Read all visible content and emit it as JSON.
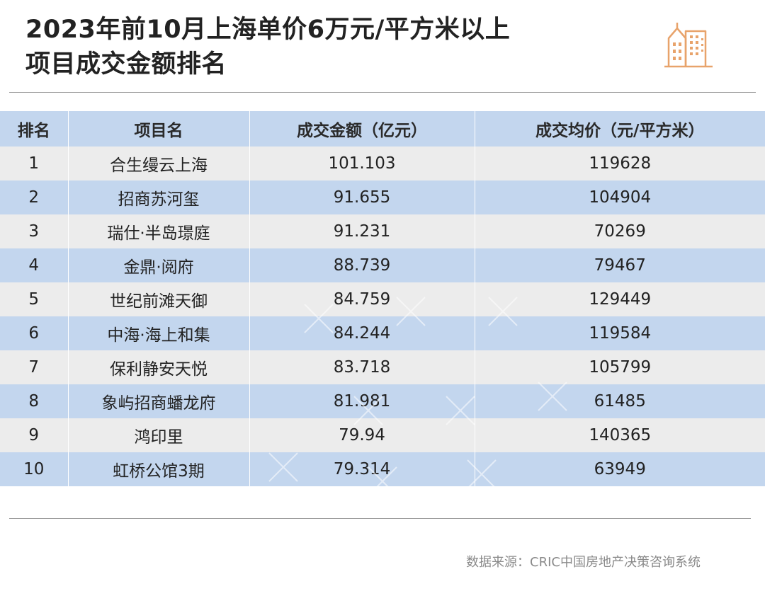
{
  "title": {
    "line1": "2023年前10月上海单价6万元/平方米以上",
    "line2": "项目成交金额排名"
  },
  "logo_icon": "buildings-icon",
  "accent_color": "#e8a36b",
  "header_color": "#c3d6ee",
  "stripe_color": "#ececec",
  "chart_data": {
    "type": "table",
    "columns": [
      "排名",
      "项目名",
      "成交金额（亿元）",
      "成交均价（元/平方米）"
    ],
    "rows": [
      [
        "1",
        "合生缦云上海",
        "101.103",
        "119628"
      ],
      [
        "2",
        "招商苏河玺",
        "91.655",
        "104904"
      ],
      [
        "3",
        "瑞仕·半岛璟庭",
        "91.231",
        "70269"
      ],
      [
        "4",
        "金鼎·阅府",
        "88.739",
        "79467"
      ],
      [
        "5",
        "世纪前滩天御",
        "84.759",
        "129449"
      ],
      [
        "6",
        "中海·海上和集",
        "84.244",
        "119584"
      ],
      [
        "7",
        "保利静安天悦",
        "83.718",
        "105799"
      ],
      [
        "8",
        "象屿招商蟠龙府",
        "81.981",
        "61485"
      ],
      [
        "9",
        "鸿印里",
        "79.94",
        "140365"
      ],
      [
        "10",
        "虹桥公馆3期",
        "79.314",
        "63949"
      ]
    ]
  },
  "footnote": "数据来源：CRIC中国房地产决策咨询系统"
}
